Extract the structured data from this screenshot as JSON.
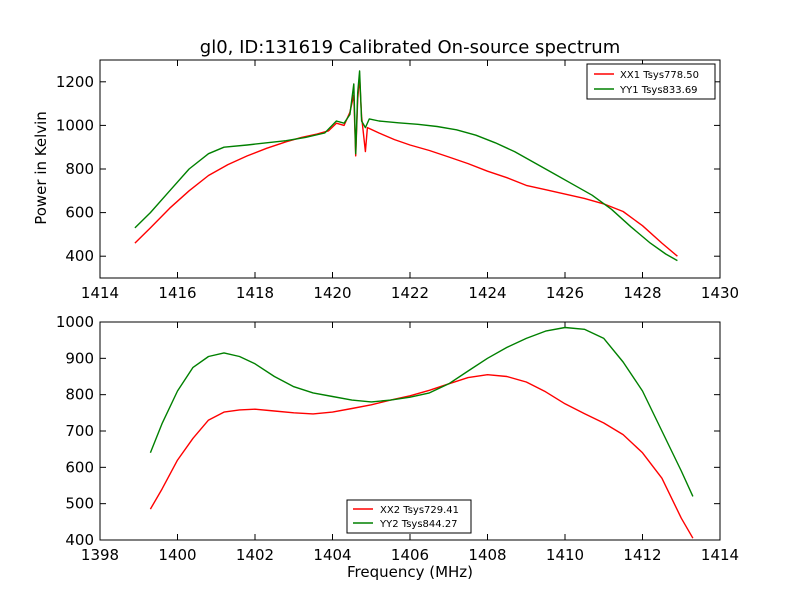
{
  "figure": {
    "title": "gl0, ID:131619 Calibrated On-source spectrum",
    "ylabel": "Power in Kelvin",
    "xlabel": "Frequency (MHz)"
  },
  "colors": {
    "red": "#ff0000",
    "green": "#008000"
  },
  "chart_data": [
    {
      "type": "line",
      "xlim": [
        1414,
        1430
      ],
      "ylim": [
        300,
        1300
      ],
      "xticks": [
        1414,
        1416,
        1418,
        1420,
        1422,
        1424,
        1426,
        1428,
        1430
      ],
      "yticks": [
        400,
        600,
        800,
        1000,
        1200
      ],
      "legend_position": "top-right",
      "grid": false,
      "series": [
        {
          "name": "XX1 Tsys778.50",
          "color": "#ff0000",
          "points": [
            [
              1414.9,
              460
            ],
            [
              1415.3,
              530
            ],
            [
              1415.8,
              620
            ],
            [
              1416.3,
              700
            ],
            [
              1416.8,
              770
            ],
            [
              1417.3,
              820
            ],
            [
              1417.8,
              860
            ],
            [
              1418.3,
              895
            ],
            [
              1418.8,
              925
            ],
            [
              1419.2,
              945
            ],
            [
              1419.6,
              960
            ],
            [
              1419.9,
              975
            ],
            [
              1420.1,
              1010
            ],
            [
              1420.3,
              1000
            ],
            [
              1420.45,
              1060
            ],
            [
              1420.55,
              1140
            ],
            [
              1420.6,
              860
            ],
            [
              1420.65,
              1120
            ],
            [
              1420.7,
              1220
            ],
            [
              1420.75,
              1040
            ],
            [
              1420.85,
              880
            ],
            [
              1420.9,
              990
            ],
            [
              1421.2,
              965
            ],
            [
              1421.6,
              935
            ],
            [
              1422.0,
              910
            ],
            [
              1422.5,
              885
            ],
            [
              1423.0,
              855
            ],
            [
              1423.5,
              825
            ],
            [
              1424.0,
              790
            ],
            [
              1424.5,
              760
            ],
            [
              1425.0,
              725
            ],
            [
              1425.5,
              705
            ],
            [
              1426.0,
              685
            ],
            [
              1426.5,
              665
            ],
            [
              1427.0,
              640
            ],
            [
              1427.5,
              605
            ],
            [
              1428.0,
              540
            ],
            [
              1428.5,
              460
            ],
            [
              1428.9,
              400
            ]
          ]
        },
        {
          "name": "YY1 Tsys833.69",
          "color": "#008000",
          "points": [
            [
              1414.9,
              530
            ],
            [
              1415.3,
              600
            ],
            [
              1415.8,
              700
            ],
            [
              1416.3,
              800
            ],
            [
              1416.8,
              870
            ],
            [
              1417.2,
              900
            ],
            [
              1417.8,
              910
            ],
            [
              1418.3,
              920
            ],
            [
              1418.8,
              930
            ],
            [
              1419.3,
              945
            ],
            [
              1419.8,
              965
            ],
            [
              1420.1,
              1020
            ],
            [
              1420.3,
              1010
            ],
            [
              1420.45,
              1050
            ],
            [
              1420.55,
              1190
            ],
            [
              1420.6,
              870
            ],
            [
              1420.65,
              1150
            ],
            [
              1420.7,
              1250
            ],
            [
              1420.75,
              1020
            ],
            [
              1420.85,
              990
            ],
            [
              1420.95,
              1030
            ],
            [
              1421.2,
              1020
            ],
            [
              1421.7,
              1012
            ],
            [
              1422.2,
              1005
            ],
            [
              1422.7,
              995
            ],
            [
              1423.2,
              980
            ],
            [
              1423.7,
              955
            ],
            [
              1424.2,
              920
            ],
            [
              1424.7,
              880
            ],
            [
              1425.2,
              830
            ],
            [
              1425.7,
              780
            ],
            [
              1426.2,
              730
            ],
            [
              1426.7,
              680
            ],
            [
              1427.2,
              615
            ],
            [
              1427.7,
              535
            ],
            [
              1428.2,
              460
            ],
            [
              1428.6,
              410
            ],
            [
              1428.9,
              380
            ]
          ]
        }
      ]
    },
    {
      "type": "line",
      "xlim": [
        1398,
        1414
      ],
      "ylim": [
        400,
        1000
      ],
      "xticks": [
        1398,
        1400,
        1402,
        1404,
        1406,
        1408,
        1410,
        1412,
        1414
      ],
      "yticks": [
        400,
        500,
        600,
        700,
        800,
        900,
        1000
      ],
      "legend_position": "bottom-center",
      "grid": false,
      "series": [
        {
          "name": "XX2 Tsys729.41",
          "color": "#ff0000",
          "points": [
            [
              1399.3,
              485
            ],
            [
              1399.6,
              540
            ],
            [
              1400.0,
              620
            ],
            [
              1400.4,
              680
            ],
            [
              1400.8,
              730
            ],
            [
              1401.2,
              752
            ],
            [
              1401.6,
              758
            ],
            [
              1402.0,
              760
            ],
            [
              1402.5,
              755
            ],
            [
              1403.0,
              750
            ],
            [
              1403.5,
              747
            ],
            [
              1404.0,
              752
            ],
            [
              1404.5,
              762
            ],
            [
              1405.0,
              772
            ],
            [
              1405.5,
              785
            ],
            [
              1406.0,
              797
            ],
            [
              1406.5,
              812
            ],
            [
              1407.0,
              830
            ],
            [
              1407.5,
              847
            ],
            [
              1408.0,
              855
            ],
            [
              1408.5,
              850
            ],
            [
              1409.0,
              835
            ],
            [
              1409.5,
              808
            ],
            [
              1410.0,
              775
            ],
            [
              1410.5,
              748
            ],
            [
              1411.0,
              722
            ],
            [
              1411.5,
              690
            ],
            [
              1412.0,
              640
            ],
            [
              1412.5,
              570
            ],
            [
              1413.0,
              460
            ],
            [
              1413.3,
              405
            ]
          ]
        },
        {
          "name": "YY2 Tsys844.27",
          "color": "#008000",
          "points": [
            [
              1399.3,
              640
            ],
            [
              1399.6,
              720
            ],
            [
              1400.0,
              810
            ],
            [
              1400.4,
              875
            ],
            [
              1400.8,
              905
            ],
            [
              1401.2,
              915
            ],
            [
              1401.6,
              905
            ],
            [
              1402.0,
              885
            ],
            [
              1402.5,
              850
            ],
            [
              1403.0,
              822
            ],
            [
              1403.5,
              805
            ],
            [
              1404.0,
              795
            ],
            [
              1404.5,
              785
            ],
            [
              1405.0,
              780
            ],
            [
              1405.5,
              785
            ],
            [
              1406.0,
              793
            ],
            [
              1406.5,
              805
            ],
            [
              1407.0,
              830
            ],
            [
              1407.5,
              865
            ],
            [
              1408.0,
              900
            ],
            [
              1408.5,
              930
            ],
            [
              1409.0,
              955
            ],
            [
              1409.5,
              975
            ],
            [
              1410.0,
              985
            ],
            [
              1410.5,
              980
            ],
            [
              1411.0,
              955
            ],
            [
              1411.5,
              890
            ],
            [
              1412.0,
              810
            ],
            [
              1412.5,
              700
            ],
            [
              1413.0,
              590
            ],
            [
              1413.3,
              520
            ]
          ]
        }
      ]
    }
  ]
}
